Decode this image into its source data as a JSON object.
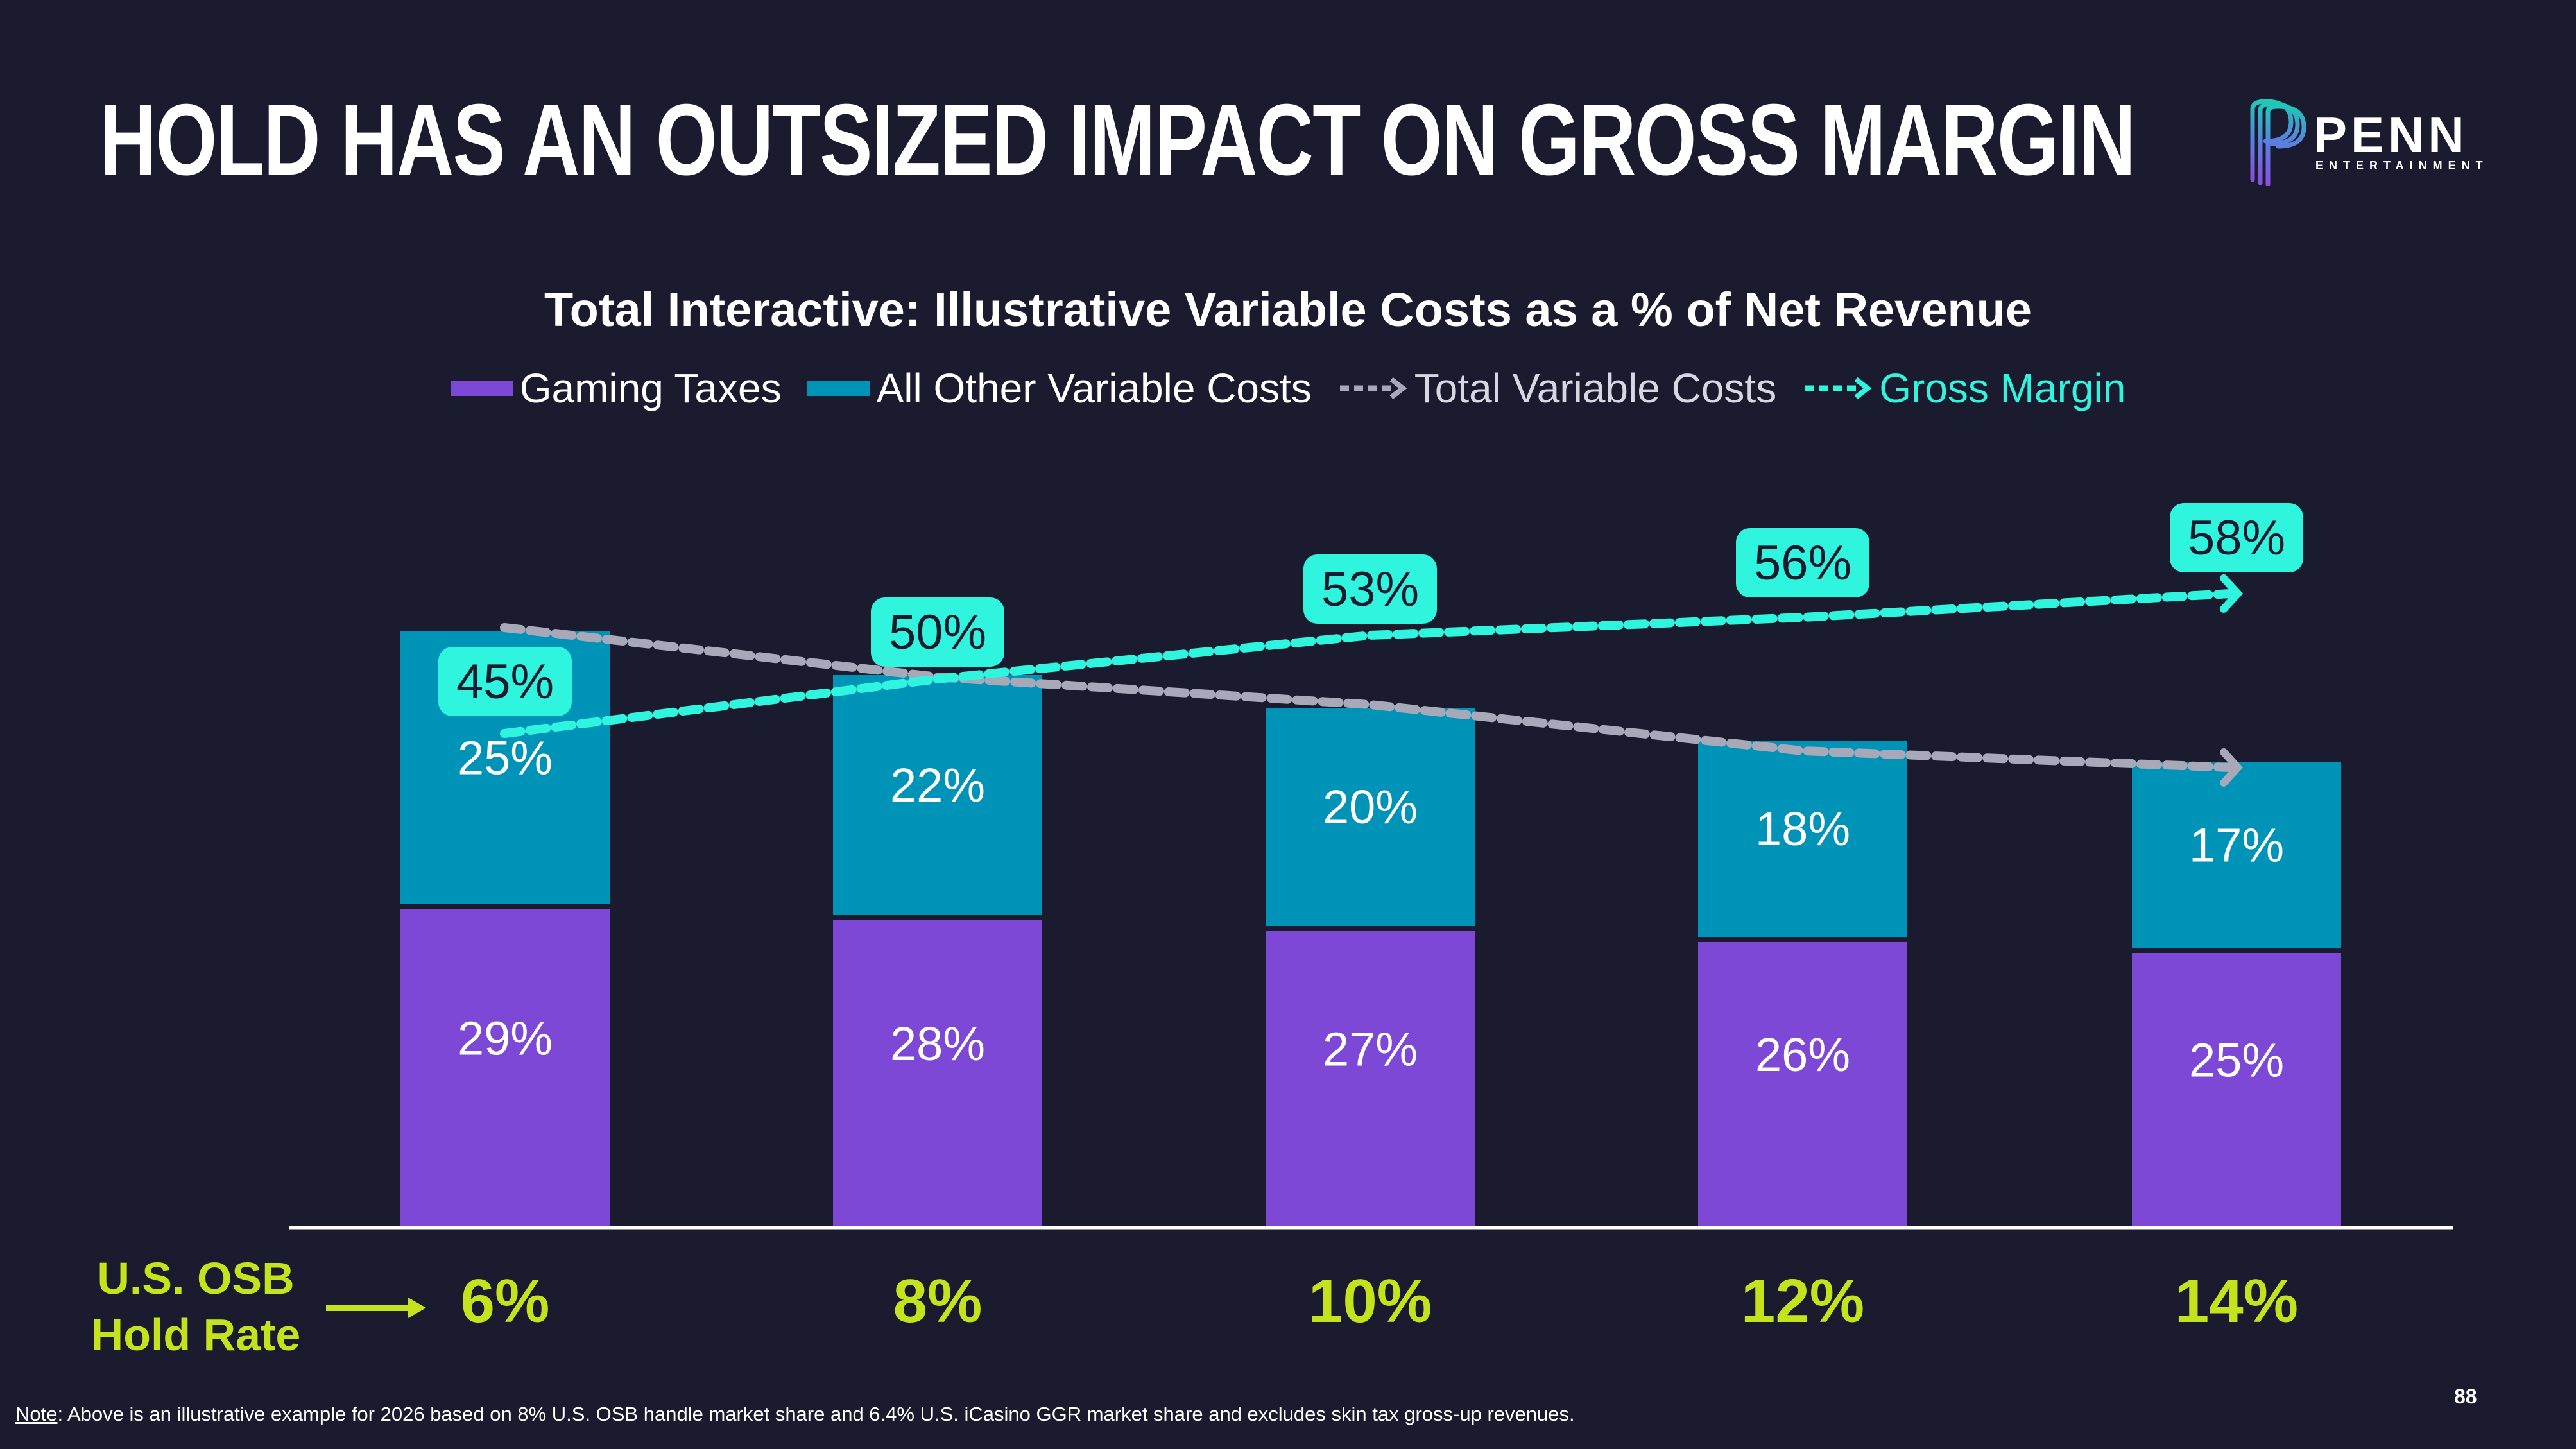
{
  "slide": {
    "title": "HOLD HAS AN OUTSIZED IMPACT ON GROSS MARGIN",
    "logo": {
      "word": "PENN",
      "sub": "ENTERTAINMENT",
      "icon": "penn-p-logo-icon"
    },
    "page_number": "88",
    "note_label": "Note",
    "note_text": ": Above is an illustrative example for 2026 based on 8% U.S. OSB handle market share and 6.4% U.S. iCasino GGR market share and excludes skin tax gross-up revenues.",
    "hold_rate_label_line1": "U.S. OSB",
    "hold_rate_label_line2": "Hold Rate"
  },
  "colors": {
    "background": "#1b1b30",
    "gaming_taxes": "#7d48d6",
    "other_costs": "#0093b8",
    "total_variable": "#a7a8b8",
    "gross_margin": "#2ff5df",
    "hold_rate": "#c5e31d"
  },
  "chart_data": {
    "type": "bar",
    "stacked": true,
    "title": "Total Interactive: Illustrative Variable Costs as a % of Net Revenue",
    "xlabel": "U.S. OSB Hold Rate",
    "ylabel": "",
    "categories": [
      "6%",
      "8%",
      "10%",
      "12%",
      "14%"
    ],
    "series": [
      {
        "name": "Gaming Taxes",
        "kind": "bar",
        "values": [
          29,
          28,
          27,
          26,
          25
        ],
        "labels": [
          "29%",
          "28%",
          "27%",
          "26%",
          "25%"
        ]
      },
      {
        "name": "All Other Variable Costs",
        "kind": "bar",
        "values": [
          25,
          22,
          20,
          18,
          17
        ],
        "labels": [
          "25%",
          "22%",
          "20%",
          "18%",
          "17%"
        ]
      },
      {
        "name": "Total Variable Costs",
        "kind": "dashed-arrow-line",
        "values": [
          55,
          50,
          47,
          44,
          42
        ]
      },
      {
        "name": "Gross Margin",
        "kind": "dashed-arrow-line",
        "values": [
          45,
          50,
          53,
          56,
          58
        ],
        "labels": [
          "45%",
          "50%",
          "53%",
          "56%",
          "58%"
        ]
      }
    ],
    "legend": [
      "Gaming Taxes",
      "All Other Variable Costs",
      "Total Variable Costs",
      "Gross Margin"
    ],
    "legend_position": "top-center",
    "ylim": [
      0,
      60
    ],
    "grid": false
  }
}
